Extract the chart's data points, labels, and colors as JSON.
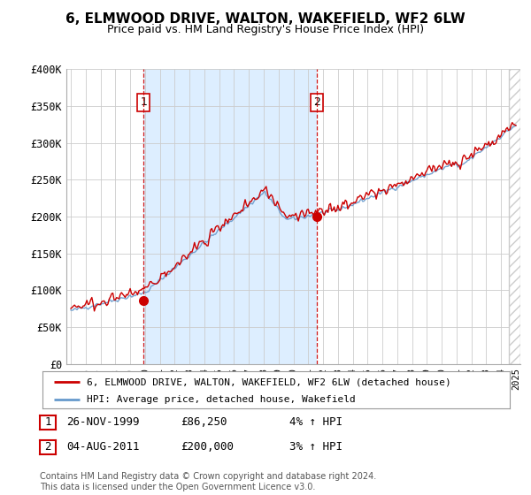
{
  "title": "6, ELMWOOD DRIVE, WALTON, WAKEFIELD, WF2 6LW",
  "subtitle": "Price paid vs. HM Land Registry's House Price Index (HPI)",
  "ylabel_ticks": [
    "£0",
    "£50K",
    "£100K",
    "£150K",
    "£200K",
    "£250K",
    "£300K",
    "£350K",
    "£400K"
  ],
  "ylim": [
    0,
    400000
  ],
  "yticks": [
    0,
    50000,
    100000,
    150000,
    200000,
    250000,
    300000,
    350000,
    400000
  ],
  "sale1_x": 1999.9,
  "sale1_value": 86250,
  "sale2_x": 2011.6,
  "sale2_value": 200000,
  "legend_line1": "6, ELMWOOD DRIVE, WALTON, WAKEFIELD, WF2 6LW (detached house)",
  "legend_line2": "HPI: Average price, detached house, Wakefield",
  "table_row1": [
    "1",
    "26-NOV-1999",
    "£86,250",
    "4% ↑ HPI"
  ],
  "table_row2": [
    "2",
    "04-AUG-2011",
    "£200,000",
    "3% ↑ HPI"
  ],
  "footnote": "Contains HM Land Registry data © Crown copyright and database right 2024.\nThis data is licensed under the Open Government Licence v3.0.",
  "house_color": "#cc0000",
  "hpi_color": "#6699cc",
  "hpi_fill_color": "#ddeeff",
  "vline_color": "#cc0000",
  "shade_between_sales": "#ddeeff",
  "background_color": "#ffffff",
  "grid_color": "#cccccc",
  "xlim_left": 1994.7,
  "xlim_right": 2025.3
}
